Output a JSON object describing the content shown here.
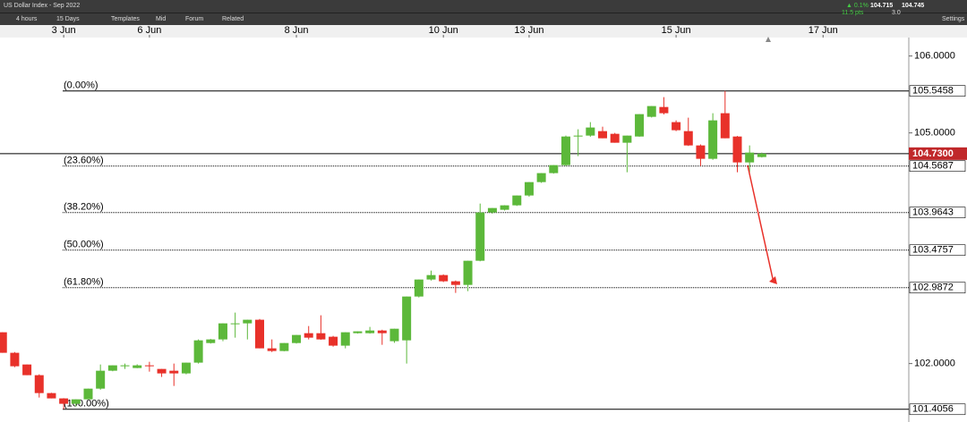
{
  "toolbar": {
    "instrument": "US Dollar Index - Sep 2022",
    "interval": "4 hours",
    "range": "15 Days",
    "buttons": [
      "Templates",
      "Mid",
      "Forum",
      "Related"
    ],
    "change_pct": "▲ 0.1%",
    "change_pts": "11.5 pts",
    "bid": "104.715",
    "offer": "104.745",
    "spread": "3.0",
    "settings": "Settings"
  },
  "chart_data": {
    "type": "candlestick",
    "up_color": "#5cb83a",
    "down_color": "#e8312a",
    "xlim": [
      -0.2,
      74
    ],
    "xticks": [
      {
        "value": 5,
        "label": "3 Jun"
      },
      {
        "value": 12,
        "label": "6 Jun"
      },
      {
        "value": 24,
        "label": "8 Jun"
      },
      {
        "value": 36,
        "label": "10 Jun"
      },
      {
        "value": 43,
        "label": "13 Jun"
      },
      {
        "value": 55,
        "label": "15 Jun"
      },
      {
        "value": 67,
        "label": "17 Jun"
      }
    ],
    "ylim": [
      101.24,
      106.24
    ],
    "yticks": [
      {
        "value": 106,
        "label": "106.0000"
      },
      {
        "value": 105,
        "label": "105.0000"
      },
      {
        "value": 102,
        "label": "102.0000"
      }
    ],
    "current_price": {
      "value": 104.73,
      "label": "104.7300"
    },
    "fib_levels": [
      {
        "label": "(0.00%)",
        "value": 105.5458
      },
      {
        "label": "(23.60%)",
        "value": 104.5687
      },
      {
        "label": "(38.20%)",
        "value": 103.9643
      },
      {
        "label": "(50.00%)",
        "value": 103.4757
      },
      {
        "label": "(61.80%)",
        "value": 102.9872
      },
      {
        "label": "(100.00%)",
        "value": 101.4056
      }
    ],
    "x": [
      0,
      1,
      2,
      3,
      4,
      5,
      6,
      7,
      8,
      9,
      10,
      11,
      12,
      13,
      14,
      15,
      16,
      17,
      18,
      19,
      20,
      21,
      22,
      23,
      24,
      25,
      26,
      27,
      28,
      29,
      30,
      31,
      32,
      33,
      34,
      35,
      36,
      37,
      38,
      39,
      40,
      41,
      42,
      43,
      44,
      45,
      46,
      47,
      48,
      49,
      50,
      51,
      52,
      53,
      54,
      55,
      56,
      57,
      58,
      59,
      60,
      61,
      62
    ],
    "ohlc": [
      [
        102.407,
        102.407,
        102.14,
        102.14
      ],
      [
        102.14,
        102.15,
        101.953,
        101.965
      ],
      [
        101.988,
        101.988,
        101.849,
        101.849
      ],
      [
        101.849,
        101.86,
        101.558,
        101.616
      ],
      [
        101.616,
        101.62,
        101.547,
        101.547
      ],
      [
        101.547,
        101.55,
        101.406,
        101.477
      ],
      [
        101.477,
        101.535,
        101.442,
        101.535
      ],
      [
        101.535,
        101.674,
        101.535,
        101.674
      ],
      [
        101.674,
        101.988,
        101.66,
        101.907
      ],
      [
        101.907,
        101.977,
        101.9,
        101.977
      ],
      [
        101.965,
        102.0,
        101.93,
        101.977
      ],
      [
        101.942,
        101.99,
        101.94,
        101.977
      ],
      [
        101.977,
        102.023,
        101.895,
        101.965
      ],
      [
        101.93,
        101.93,
        101.826,
        101.872
      ],
      [
        101.907,
        102.0,
        101.709,
        101.872
      ],
      [
        101.872,
        102.012,
        101.86,
        102.012
      ],
      [
        102.012,
        102.314,
        102.0,
        102.302
      ],
      [
        102.267,
        102.32,
        102.26,
        102.314
      ],
      [
        102.314,
        102.523,
        102.291,
        102.523
      ],
      [
        102.52,
        102.663,
        102.337,
        102.523
      ],
      [
        102.523,
        102.57,
        102.314,
        102.57
      ],
      [
        102.57,
        102.58,
        102.198,
        102.198
      ],
      [
        102.198,
        102.314,
        102.15,
        102.163
      ],
      [
        102.163,
        102.267,
        102.16,
        102.267
      ],
      [
        102.267,
        102.372,
        102.26,
        102.372
      ],
      [
        102.395,
        102.488,
        102.314,
        102.337
      ],
      [
        102.395,
        102.628,
        102.31,
        102.314
      ],
      [
        102.349,
        102.36,
        102.22,
        102.233
      ],
      [
        102.233,
        102.407,
        102.198,
        102.407
      ],
      [
        102.395,
        102.42,
        102.39,
        102.419
      ],
      [
        102.395,
        102.477,
        102.39,
        102.43
      ],
      [
        102.43,
        102.44,
        102.244,
        102.395
      ],
      [
        102.291,
        102.453,
        102.27,
        102.453
      ],
      [
        102.302,
        102.872,
        102.0,
        102.872
      ],
      [
        102.872,
        103.093,
        102.86,
        103.093
      ],
      [
        103.093,
        103.209,
        103.08,
        103.151
      ],
      [
        103.151,
        103.16,
        103.06,
        103.07
      ],
      [
        103.07,
        103.08,
        102.919,
        103.023
      ],
      [
        103.023,
        103.337,
        102.942,
        103.337
      ],
      [
        103.337,
        104.081,
        103.33,
        103.965
      ],
      [
        103.965,
        104.023,
        103.95,
        104.023
      ],
      [
        104.0,
        104.06,
        103.99,
        104.058
      ],
      [
        104.058,
        104.186,
        104.05,
        104.186
      ],
      [
        104.186,
        104.36,
        104.17,
        104.36
      ],
      [
        104.36,
        104.477,
        104.35,
        104.477
      ],
      [
        104.477,
        104.581,
        104.47,
        104.581
      ],
      [
        104.581,
        104.965,
        104.57,
        104.953
      ],
      [
        104.953,
        105.047,
        104.698,
        104.965
      ],
      [
        104.965,
        105.14,
        104.95,
        105.07
      ],
      [
        105.023,
        105.081,
        104.93,
        104.93
      ],
      [
        104.988,
        105.0,
        104.872,
        104.872
      ],
      [
        104.872,
        104.965,
        104.488,
        104.965
      ],
      [
        104.953,
        105.244,
        104.95,
        105.244
      ],
      [
        105.209,
        105.349,
        105.2,
        105.349
      ],
      [
        105.337,
        105.465,
        105.24,
        105.256
      ],
      [
        105.14,
        105.163,
        105.023,
        105.035
      ],
      [
        105.023,
        105.198,
        104.83,
        104.837
      ],
      [
        104.837,
        104.85,
        104.57,
        104.663
      ],
      [
        104.663,
        105.256,
        104.65,
        105.163
      ],
      [
        105.256,
        105.5458,
        104.93,
        104.93
      ],
      [
        104.953,
        104.96,
        104.488,
        104.616
      ],
      [
        104.616,
        104.837,
        104.488,
        104.744
      ],
      [
        104.686,
        104.744,
        104.68,
        104.73
      ]
    ]
  }
}
